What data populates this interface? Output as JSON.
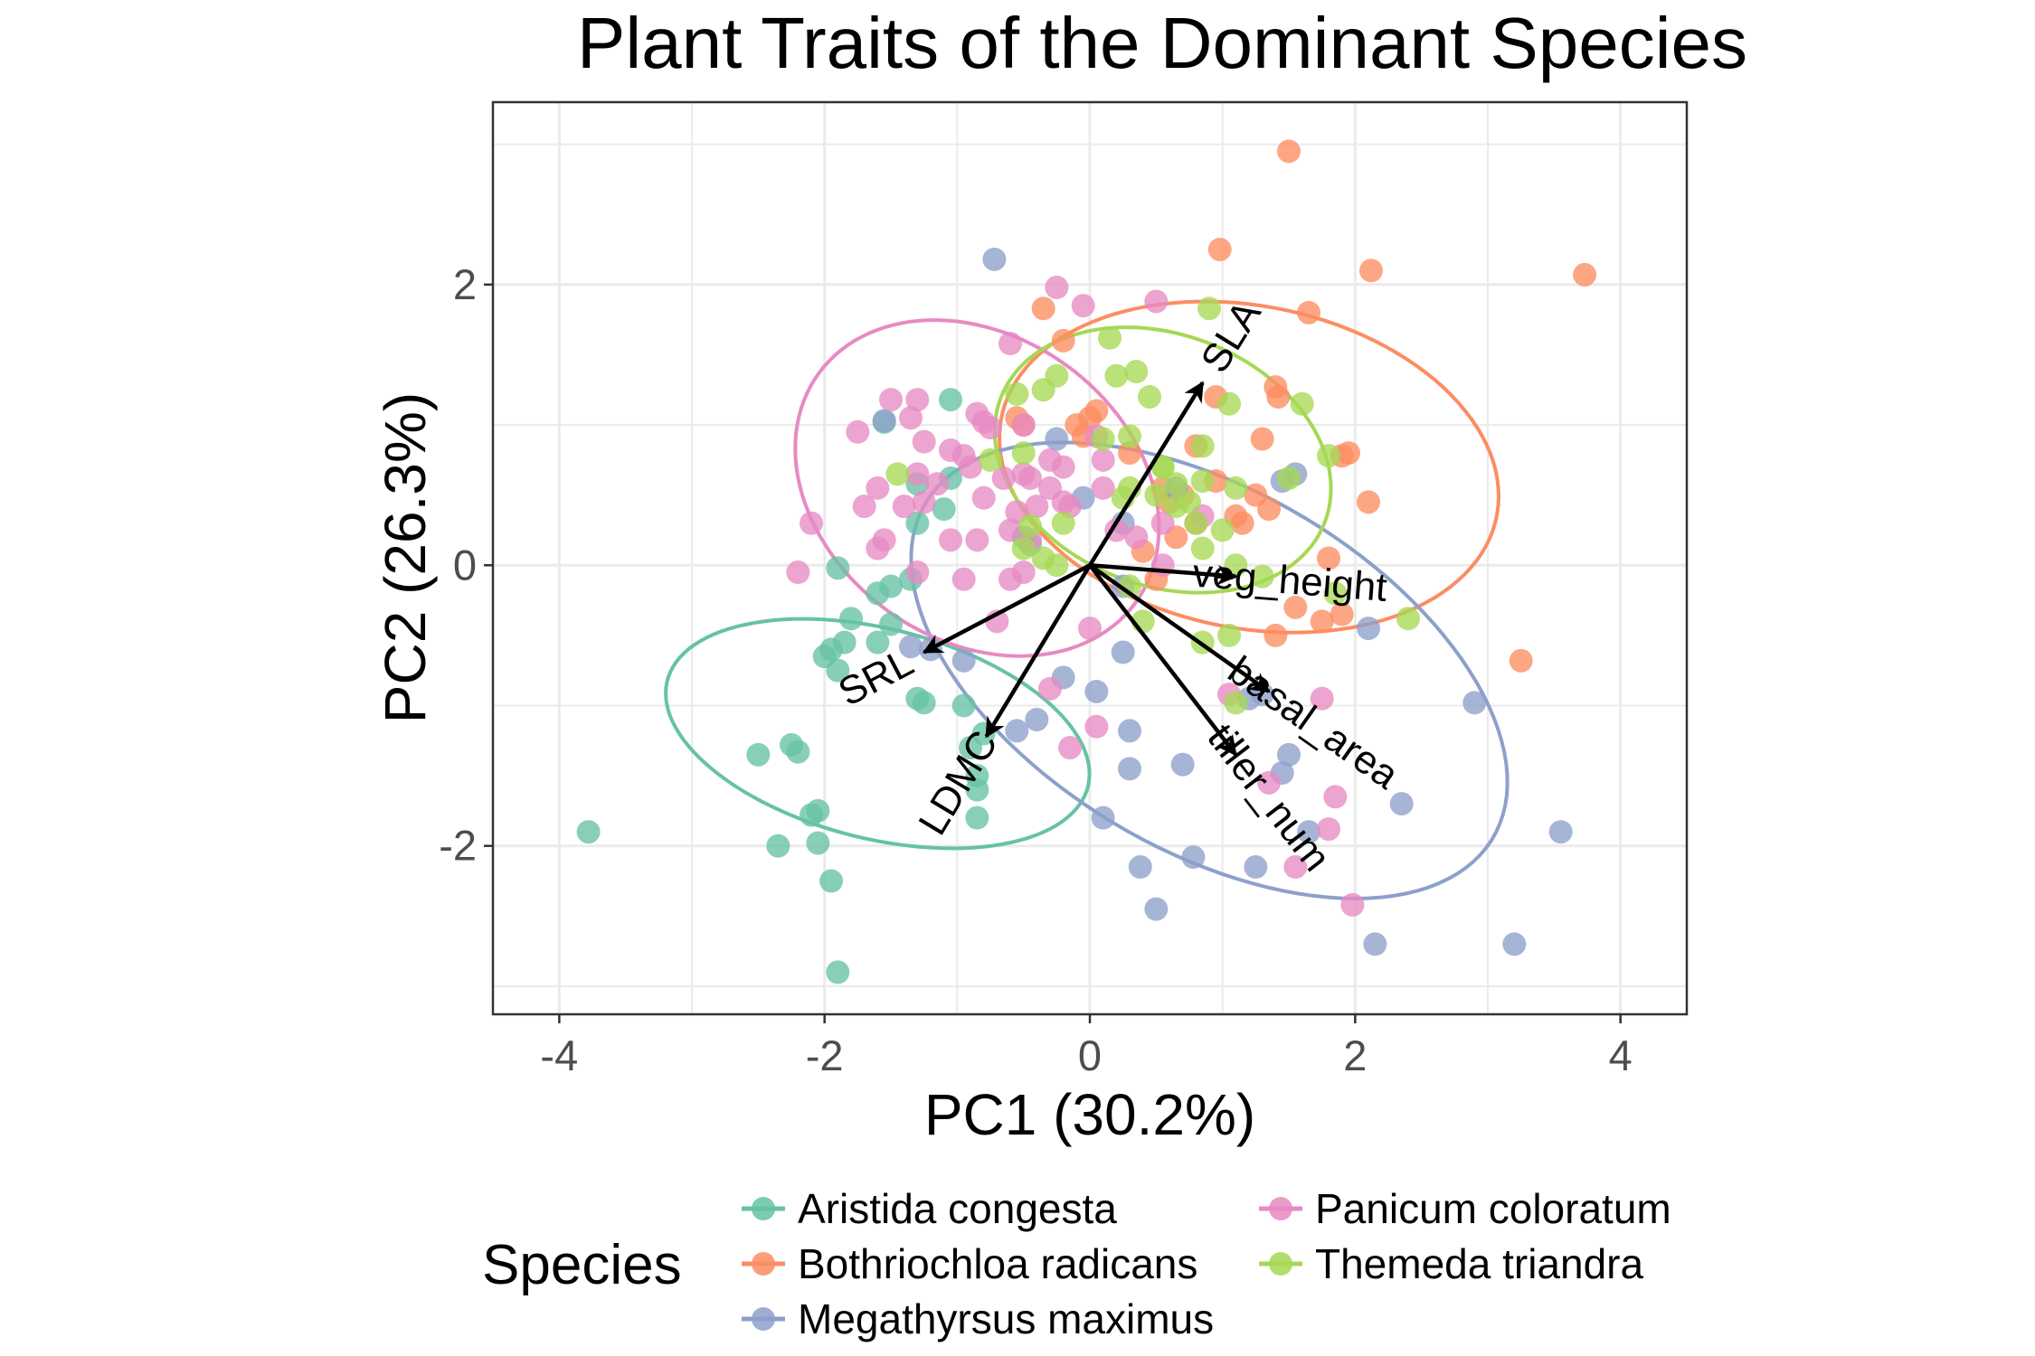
{
  "chart_data": {
    "type": "scatter",
    "title": "Plant Traits of the Dominant Species",
    "xlabel": "PC1 (30.2%)",
    "ylabel": "PC2 (26.3%)",
    "xlim": [
      -4.5,
      4.5
    ],
    "ylim": [
      -3.2,
      3.3
    ],
    "xticks": [
      -4,
      -2,
      0,
      2,
      4
    ],
    "xtick_labels": [
      "-4",
      "-2",
      "0",
      "2",
      "4"
    ],
    "yticks": [
      -2,
      0,
      2
    ],
    "ytick_labels": [
      "-2",
      "0",
      "2"
    ],
    "grid": true,
    "legend": {
      "title": "Species",
      "position": "bottom"
    },
    "series": [
      {
        "name": "Aristida congesta",
        "color": "#66c2a5",
        "points": [
          [
            -3.78,
            -1.9
          ],
          [
            -2.5,
            -1.35
          ],
          [
            -2.25,
            -1.28
          ],
          [
            -2.2,
            -1.33
          ],
          [
            -2.35,
            -2.0
          ],
          [
            -2.1,
            -1.78
          ],
          [
            -2.05,
            -1.75
          ],
          [
            -2.05,
            -1.98
          ],
          [
            -1.95,
            -2.25
          ],
          [
            -1.9,
            -2.9
          ],
          [
            -2.0,
            -0.65
          ],
          [
            -1.95,
            -0.6
          ],
          [
            -1.9,
            -0.75
          ],
          [
            -1.85,
            -0.55
          ],
          [
            -1.8,
            -0.38
          ],
          [
            -1.9,
            -0.02
          ],
          [
            -1.6,
            -0.2
          ],
          [
            -1.6,
            -0.55
          ],
          [
            -1.5,
            -0.42
          ],
          [
            -1.5,
            -0.15
          ],
          [
            -1.3,
            -0.95
          ],
          [
            -1.25,
            -0.98
          ],
          [
            -1.35,
            -0.1
          ],
          [
            -1.3,
            0.58
          ],
          [
            -1.05,
            1.18
          ],
          [
            -0.95,
            -1.0
          ],
          [
            -0.85,
            -1.6
          ],
          [
            -0.85,
            -1.8
          ],
          [
            -0.8,
            -1.2
          ],
          [
            -0.85,
            -1.5
          ],
          [
            -0.9,
            -1.3
          ],
          [
            -1.1,
            0.4
          ],
          [
            -1.05,
            0.62
          ],
          [
            -1.55,
            1.02
          ],
          [
            -0.5,
            0.2
          ],
          [
            -0.45,
            0.15
          ],
          [
            -1.3,
            0.3
          ]
        ]
      },
      {
        "name": "Bothriochloa radicans",
        "color": "#fc8d62",
        "points": [
          [
            1.5,
            2.95
          ],
          [
            0.98,
            2.25
          ],
          [
            2.12,
            2.1
          ],
          [
            3.73,
            2.07
          ],
          [
            1.65,
            1.8
          ],
          [
            -0.35,
            1.83
          ],
          [
            -0.2,
            1.6
          ],
          [
            1.4,
            1.27
          ],
          [
            1.42,
            1.2
          ],
          [
            1.3,
            0.9
          ],
          [
            1.95,
            0.8
          ],
          [
            1.9,
            0.78
          ],
          [
            2.1,
            0.45
          ],
          [
            1.25,
            0.5
          ],
          [
            1.35,
            0.4
          ],
          [
            1.1,
            0.35
          ],
          [
            1.15,
            0.3
          ],
          [
            0.95,
            0.6
          ],
          [
            1.8,
            0.05
          ],
          [
            1.55,
            -0.3
          ],
          [
            1.75,
            -0.4
          ],
          [
            1.9,
            -0.35
          ],
          [
            1.4,
            -0.5
          ],
          [
            3.25,
            -0.68
          ],
          [
            0.0,
            1.05
          ],
          [
            -0.1,
            1.0
          ],
          [
            0.05,
            1.1
          ],
          [
            -0.55,
            1.05
          ],
          [
            0.3,
            0.8
          ],
          [
            -0.05,
            0.92
          ],
          [
            -0.5,
            1.0
          ],
          [
            0.55,
            0.55
          ],
          [
            0.7,
            0.5
          ],
          [
            0.65,
            0.2
          ],
          [
            0.8,
            0.3
          ],
          [
            0.4,
            0.1
          ],
          [
            0.5,
            -0.1
          ],
          [
            0.95,
            1.2
          ],
          [
            0.8,
            0.85
          ],
          [
            0.6,
            0.45
          ]
        ]
      },
      {
        "name": "Megathyrsus maximus",
        "color": "#8da0cb",
        "points": [
          [
            -0.72,
            2.18
          ],
          [
            -1.55,
            1.03
          ],
          [
            -0.25,
            0.9
          ],
          [
            0.65,
            0.55
          ],
          [
            1.45,
            0.6
          ],
          [
            1.55,
            0.65
          ],
          [
            -0.05,
            0.48
          ],
          [
            0.25,
            0.3
          ],
          [
            -1.35,
            -0.58
          ],
          [
            -1.2,
            -0.6
          ],
          [
            -0.95,
            -0.68
          ],
          [
            -0.55,
            -1.18
          ],
          [
            0.05,
            -0.9
          ],
          [
            0.25,
            -0.62
          ],
          [
            0.3,
            -1.18
          ],
          [
            0.3,
            -1.45
          ],
          [
            0.1,
            -1.8
          ],
          [
            0.38,
            -2.15
          ],
          [
            0.5,
            -2.45
          ],
          [
            0.78,
            -2.08
          ],
          [
            1.25,
            -2.15
          ],
          [
            1.45,
            -1.48
          ],
          [
            1.5,
            -1.35
          ],
          [
            1.65,
            -1.9
          ],
          [
            1.2,
            -0.95
          ],
          [
            1.3,
            -0.92
          ],
          [
            2.1,
            -0.45
          ],
          [
            2.35,
            -1.7
          ],
          [
            2.15,
            -2.7
          ],
          [
            2.9,
            -0.98
          ],
          [
            3.2,
            -2.7
          ],
          [
            3.55,
            -1.9
          ],
          [
            0.7,
            -1.42
          ],
          [
            -0.2,
            -0.8
          ],
          [
            -0.4,
            -1.1
          ],
          [
            0.25,
            -0.15
          ]
        ]
      },
      {
        "name": "Panicum coloratum",
        "color": "#e78ac3",
        "points": [
          [
            -0.25,
            1.98
          ],
          [
            0.5,
            1.88
          ],
          [
            -0.05,
            1.85
          ],
          [
            -0.6,
            1.58
          ],
          [
            -1.3,
            1.18
          ],
          [
            -1.5,
            1.18
          ],
          [
            -1.35,
            1.05
          ],
          [
            -0.85,
            1.08
          ],
          [
            -0.8,
            1.02
          ],
          [
            -0.75,
            0.98
          ],
          [
            -0.5,
            1.0
          ],
          [
            -1.75,
            0.95
          ],
          [
            -1.25,
            0.88
          ],
          [
            -1.05,
            0.82
          ],
          [
            -1.3,
            0.65
          ],
          [
            -0.95,
            0.78
          ],
          [
            -0.9,
            0.7
          ],
          [
            -0.5,
            0.65
          ],
          [
            -0.3,
            0.55
          ],
          [
            -0.45,
            0.62
          ],
          [
            -0.65,
            0.62
          ],
          [
            -0.3,
            0.75
          ],
          [
            -0.2,
            0.7
          ],
          [
            0.1,
            0.75
          ],
          [
            0.05,
            0.92
          ],
          [
            -1.7,
            0.42
          ],
          [
            -1.4,
            0.42
          ],
          [
            -1.25,
            0.45
          ],
          [
            -0.8,
            0.48
          ],
          [
            -0.55,
            0.38
          ],
          [
            -0.4,
            0.42
          ],
          [
            -0.2,
            0.45
          ],
          [
            0.1,
            0.55
          ],
          [
            -0.15,
            0.42
          ],
          [
            -2.1,
            0.3
          ],
          [
            -1.6,
            0.12
          ],
          [
            -1.55,
            0.18
          ],
          [
            -1.05,
            0.18
          ],
          [
            -0.85,
            0.18
          ],
          [
            -0.6,
            0.25
          ],
          [
            -0.45,
            0.18
          ],
          [
            0.2,
            0.25
          ],
          [
            0.35,
            0.2
          ],
          [
            0.55,
            0.3
          ],
          [
            0.85,
            0.35
          ],
          [
            -2.2,
            -0.05
          ],
          [
            -0.95,
            -0.1
          ],
          [
            -0.6,
            -0.1
          ],
          [
            -0.5,
            -0.05
          ],
          [
            -0.7,
            -0.4
          ],
          [
            0.0,
            -0.45
          ],
          [
            -0.3,
            -0.88
          ],
          [
            0.05,
            -1.15
          ],
          [
            -0.15,
            -1.3
          ],
          [
            1.05,
            -0.92
          ],
          [
            1.75,
            -0.95
          ],
          [
            1.85,
            -1.65
          ],
          [
            1.8,
            -1.88
          ],
          [
            1.55,
            -2.15
          ],
          [
            1.35,
            -1.55
          ],
          [
            1.98,
            -2.42
          ],
          [
            0.55,
            0.0
          ],
          [
            -1.3,
            -0.05
          ],
          [
            -1.15,
            0.58
          ],
          [
            -1.6,
            0.55
          ]
        ]
      },
      {
        "name": "Themeda triandra",
        "color": "#a6d854",
        "points": [
          [
            0.9,
            1.83
          ],
          [
            0.15,
            1.62
          ],
          [
            -0.35,
            1.25
          ],
          [
            -0.55,
            1.22
          ],
          [
            -0.25,
            1.35
          ],
          [
            0.2,
            1.35
          ],
          [
            0.35,
            1.38
          ],
          [
            0.45,
            1.2
          ],
          [
            1.05,
            1.15
          ],
          [
            1.6,
            1.15
          ],
          [
            -1.45,
            0.65
          ],
          [
            -0.75,
            0.75
          ],
          [
            -0.5,
            0.8
          ],
          [
            0.1,
            0.9
          ],
          [
            0.3,
            0.92
          ],
          [
            0.85,
            0.85
          ],
          [
            0.55,
            0.7
          ],
          [
            0.65,
            0.58
          ],
          [
            1.8,
            0.78
          ],
          [
            0.85,
            0.6
          ],
          [
            0.75,
            0.45
          ],
          [
            0.5,
            0.5
          ],
          [
            1.1,
            0.55
          ],
          [
            1.5,
            0.62
          ],
          [
            0.3,
            0.55
          ],
          [
            0.25,
            0.48
          ],
          [
            0.65,
            0.42
          ],
          [
            0.8,
            0.3
          ],
          [
            1.0,
            0.25
          ],
          [
            -0.2,
            0.3
          ],
          [
            -0.45,
            0.28
          ],
          [
            -0.5,
            0.12
          ],
          [
            -0.35,
            0.05
          ],
          [
            -0.25,
            0.0
          ],
          [
            0.85,
            0.12
          ],
          [
            1.1,
            0.0
          ],
          [
            1.3,
            -0.08
          ],
          [
            0.3,
            -0.15
          ],
          [
            0.4,
            -0.4
          ],
          [
            0.85,
            -0.55
          ],
          [
            1.05,
            -0.5
          ],
          [
            1.1,
            -0.98
          ],
          [
            2.4,
            -0.38
          ],
          [
            1.85,
            -0.2
          ],
          [
            0.55,
            0.7
          ]
        ]
      }
    ],
    "ellipses": [
      {
        "series": "Aristida congesta",
        "color": "#66c2a5",
        "cx": -1.6,
        "cy": -1.2,
        "rx": 0.75,
        "ry": 1.63,
        "angle_deg": 77
      },
      {
        "series": "Bothriochloa radicans",
        "color": "#fc8d62",
        "cx": 1.2,
        "cy": 0.7,
        "rx": 1.9,
        "ry": 1.15,
        "angle_deg": -10
      },
      {
        "series": "Megathyrsus maximus",
        "color": "#8da0cb",
        "cx": 0.9,
        "cy": -0.75,
        "rx": 2.45,
        "ry": 1.3,
        "angle_deg": -28
      },
      {
        "series": "Panicum coloratum",
        "color": "#e78ac3",
        "cx": -0.85,
        "cy": 0.55,
        "rx": 1.45,
        "ry": 1.1,
        "angle_deg": -30
      },
      {
        "series": "Themeda triandra",
        "color": "#a6d854",
        "cx": 0.55,
        "cy": 0.75,
        "rx": 1.3,
        "ry": 0.9,
        "angle_deg": -18
      }
    ],
    "loadings": [
      {
        "label": "SLA",
        "x": 0.85,
        "y": 1.3
      },
      {
        "label": "veg_height",
        "x": 1.1,
        "y": -0.08
      },
      {
        "label": "basal_area",
        "x": 1.35,
        "y": -0.9
      },
      {
        "label": "tiller_num",
        "x": 1.1,
        "y": -1.35
      },
      {
        "label": "LDMC",
        "x": -0.78,
        "y": -1.22
      },
      {
        "label": "SRL",
        "x": -1.25,
        "y": -0.62
      }
    ]
  }
}
